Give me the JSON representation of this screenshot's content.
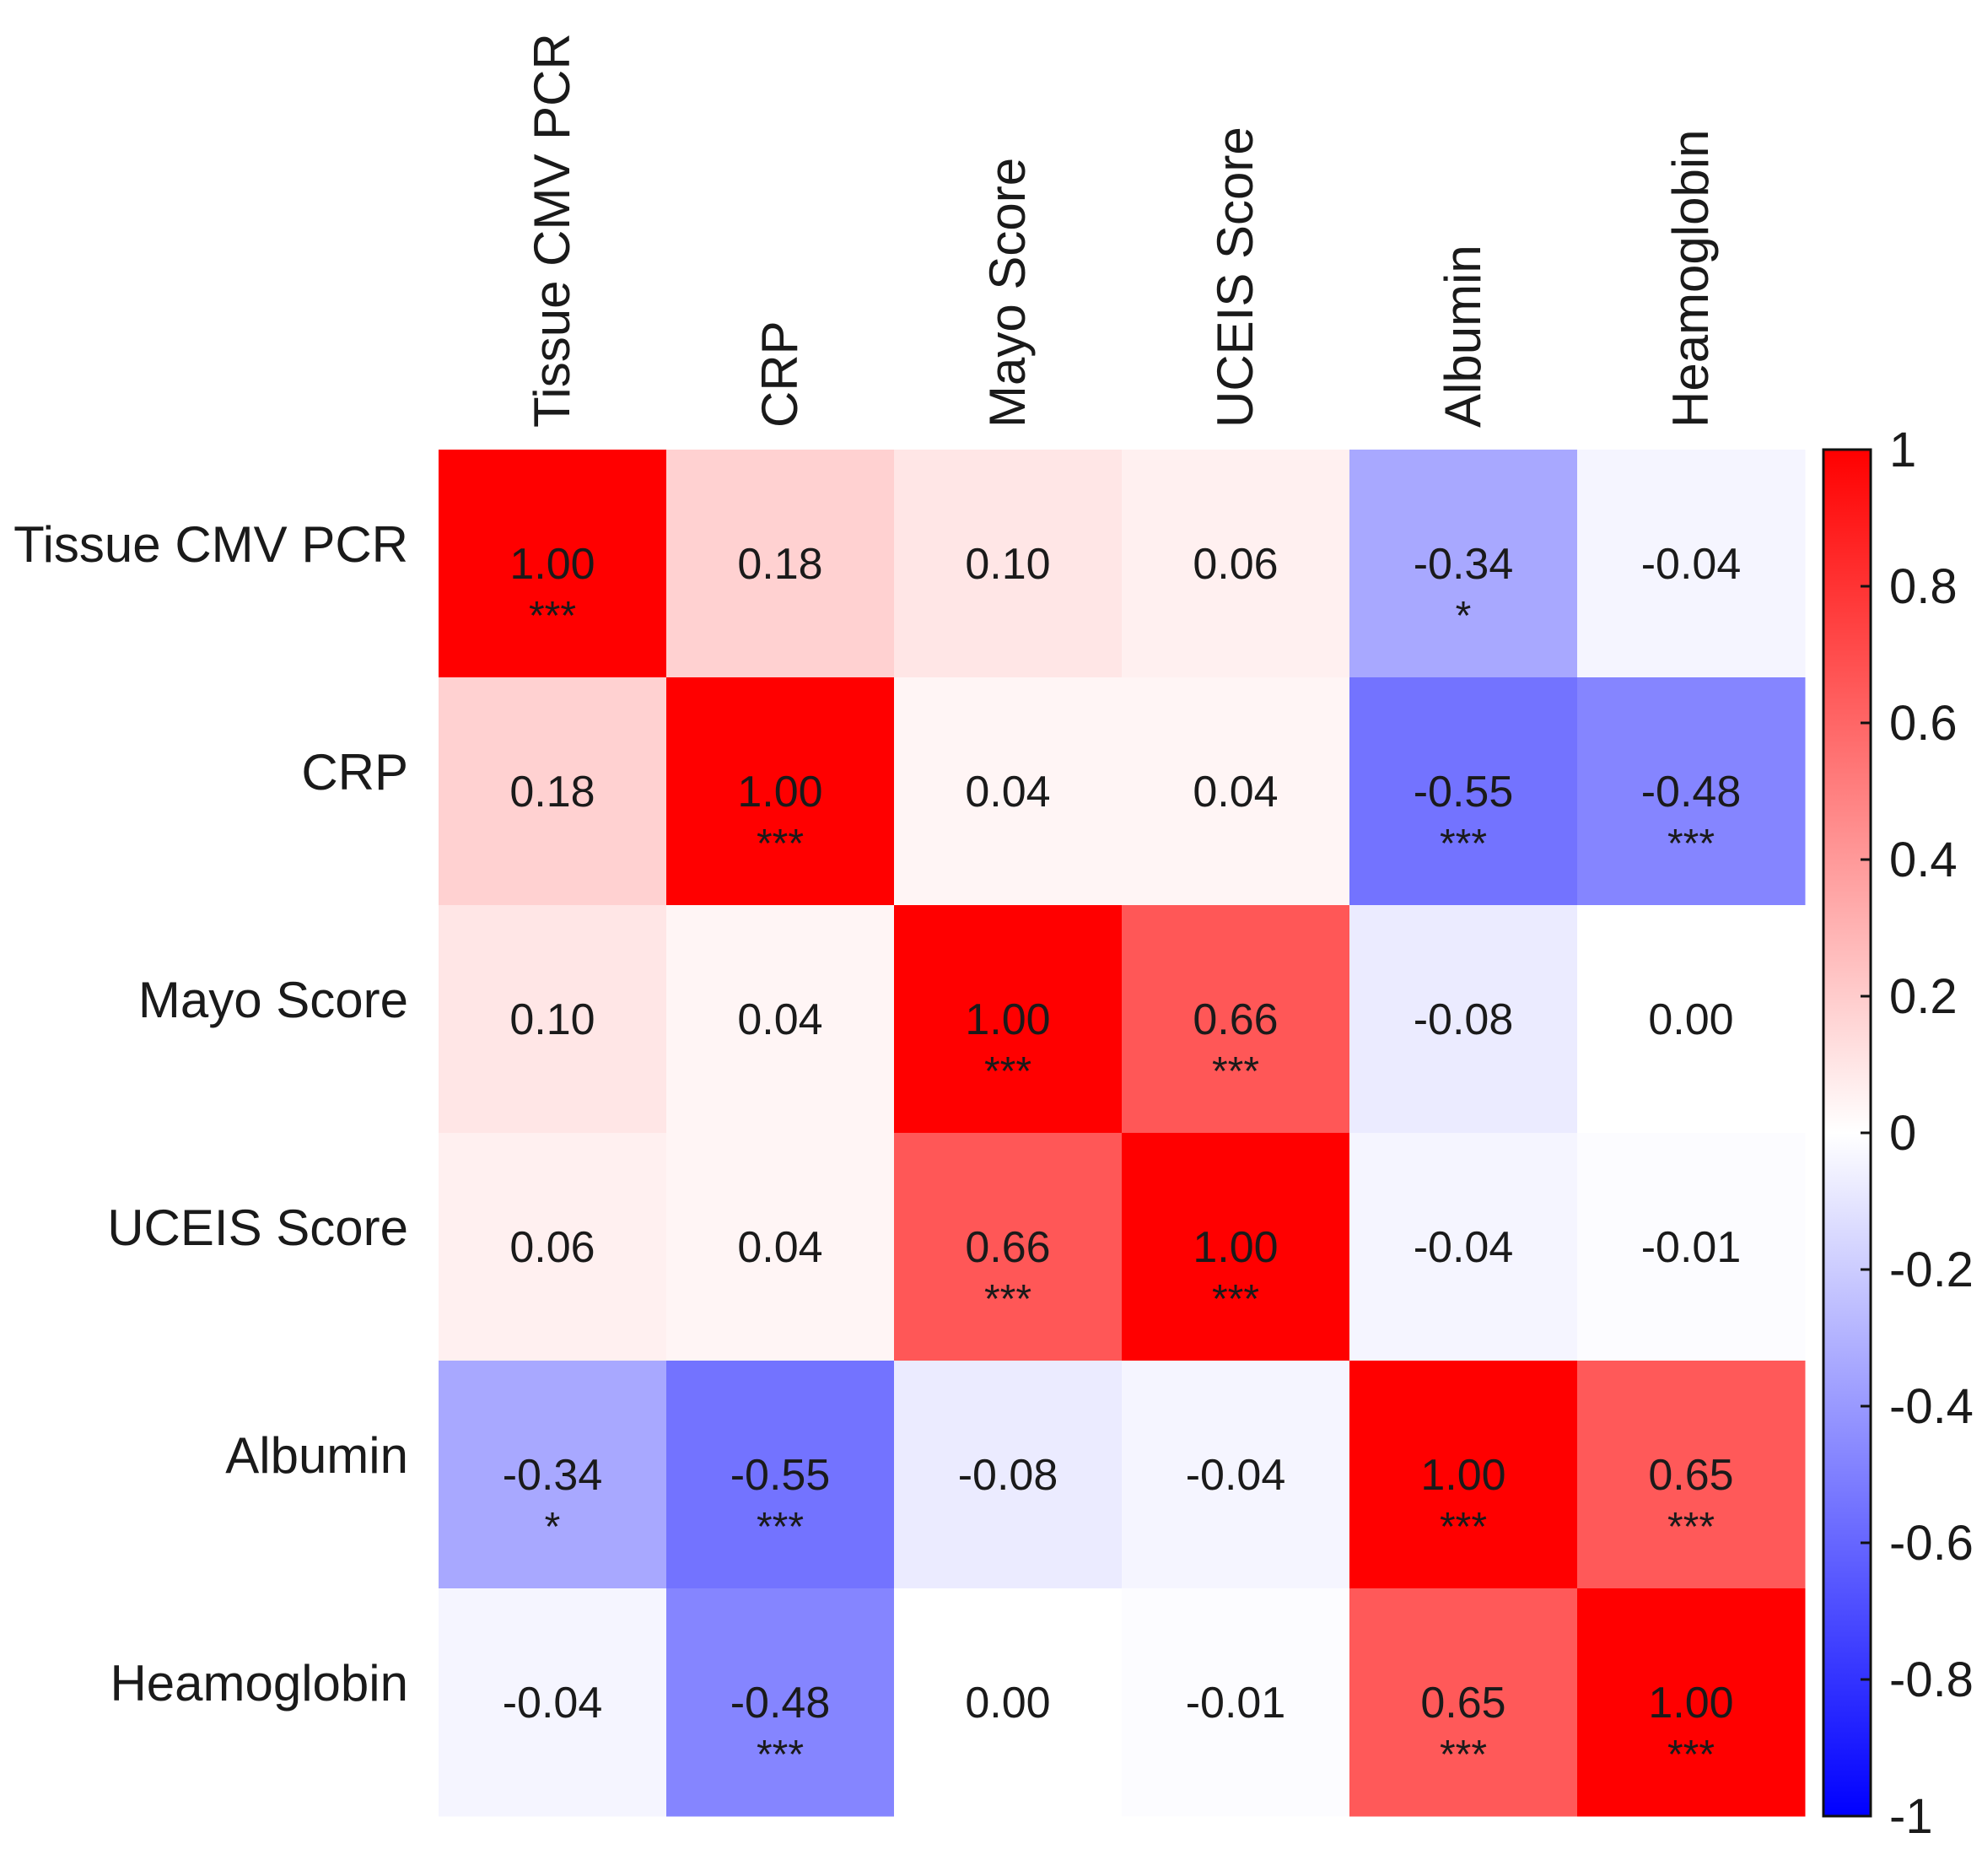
{
  "chart_data": {
    "type": "heatmap",
    "variables": [
      "Tissue CMV PCR",
      "CRP",
      "Mayo Score",
      "UCEIS Score",
      "Albumin",
      "Heamoglobin"
    ],
    "values": [
      [
        1.0,
        0.18,
        0.1,
        0.06,
        -0.34,
        -0.04
      ],
      [
        0.18,
        1.0,
        0.04,
        0.04,
        -0.55,
        -0.48
      ],
      [
        0.1,
        0.04,
        1.0,
        0.66,
        -0.08,
        0.0
      ],
      [
        0.06,
        0.04,
        0.66,
        1.0,
        -0.04,
        -0.01
      ],
      [
        -0.34,
        -0.55,
        -0.08,
        -0.04,
        1.0,
        0.65
      ],
      [
        -0.04,
        -0.48,
        0.0,
        -0.01,
        0.65,
        1.0
      ]
    ],
    "value_labels": [
      [
        "1.00",
        "0.18",
        "0.10",
        "0.06",
        "-0.34",
        "-0.04"
      ],
      [
        "0.18",
        "1.00",
        "0.04",
        "0.04",
        "-0.55",
        "-0.48"
      ],
      [
        "0.10",
        "0.04",
        "1.00",
        "0.66",
        "-0.08",
        "0.00"
      ],
      [
        "0.06",
        "0.04",
        "0.66",
        "1.00",
        "-0.04",
        "-0.01"
      ],
      [
        "-0.34",
        "-0.55",
        "-0.08",
        "-0.04",
        "1.00",
        "0.65"
      ],
      [
        "-0.04",
        "-0.48",
        "0.00",
        "-0.01",
        "0.65",
        "1.00"
      ]
    ],
    "significance": [
      [
        "***",
        "",
        "",
        "",
        "*",
        ""
      ],
      [
        "",
        "***",
        "",
        "",
        "***",
        "***"
      ],
      [
        "",
        "",
        "***",
        "***",
        "",
        ""
      ],
      [
        "",
        "",
        "***",
        "***",
        "",
        ""
      ],
      [
        "*",
        "***",
        "",
        "",
        "***",
        "***"
      ],
      [
        "",
        "***",
        "",
        "",
        "***",
        "***"
      ]
    ],
    "colorbar": {
      "range": [
        -1,
        1
      ],
      "ticks": [
        "1",
        "0.8",
        "0.6",
        "0.4",
        "0.2",
        "0",
        "-0.2",
        "-0.4",
        "-0.6",
        "-0.8",
        "-1"
      ],
      "tick_values": [
        1,
        0.8,
        0.6,
        0.4,
        0.2,
        0,
        -0.2,
        -0.4,
        -0.6,
        -0.8,
        -1
      ],
      "colors": {
        "low": "#0000ff",
        "mid": "#ffffff",
        "high": "#ff0000"
      }
    },
    "legend_position": "right"
  }
}
